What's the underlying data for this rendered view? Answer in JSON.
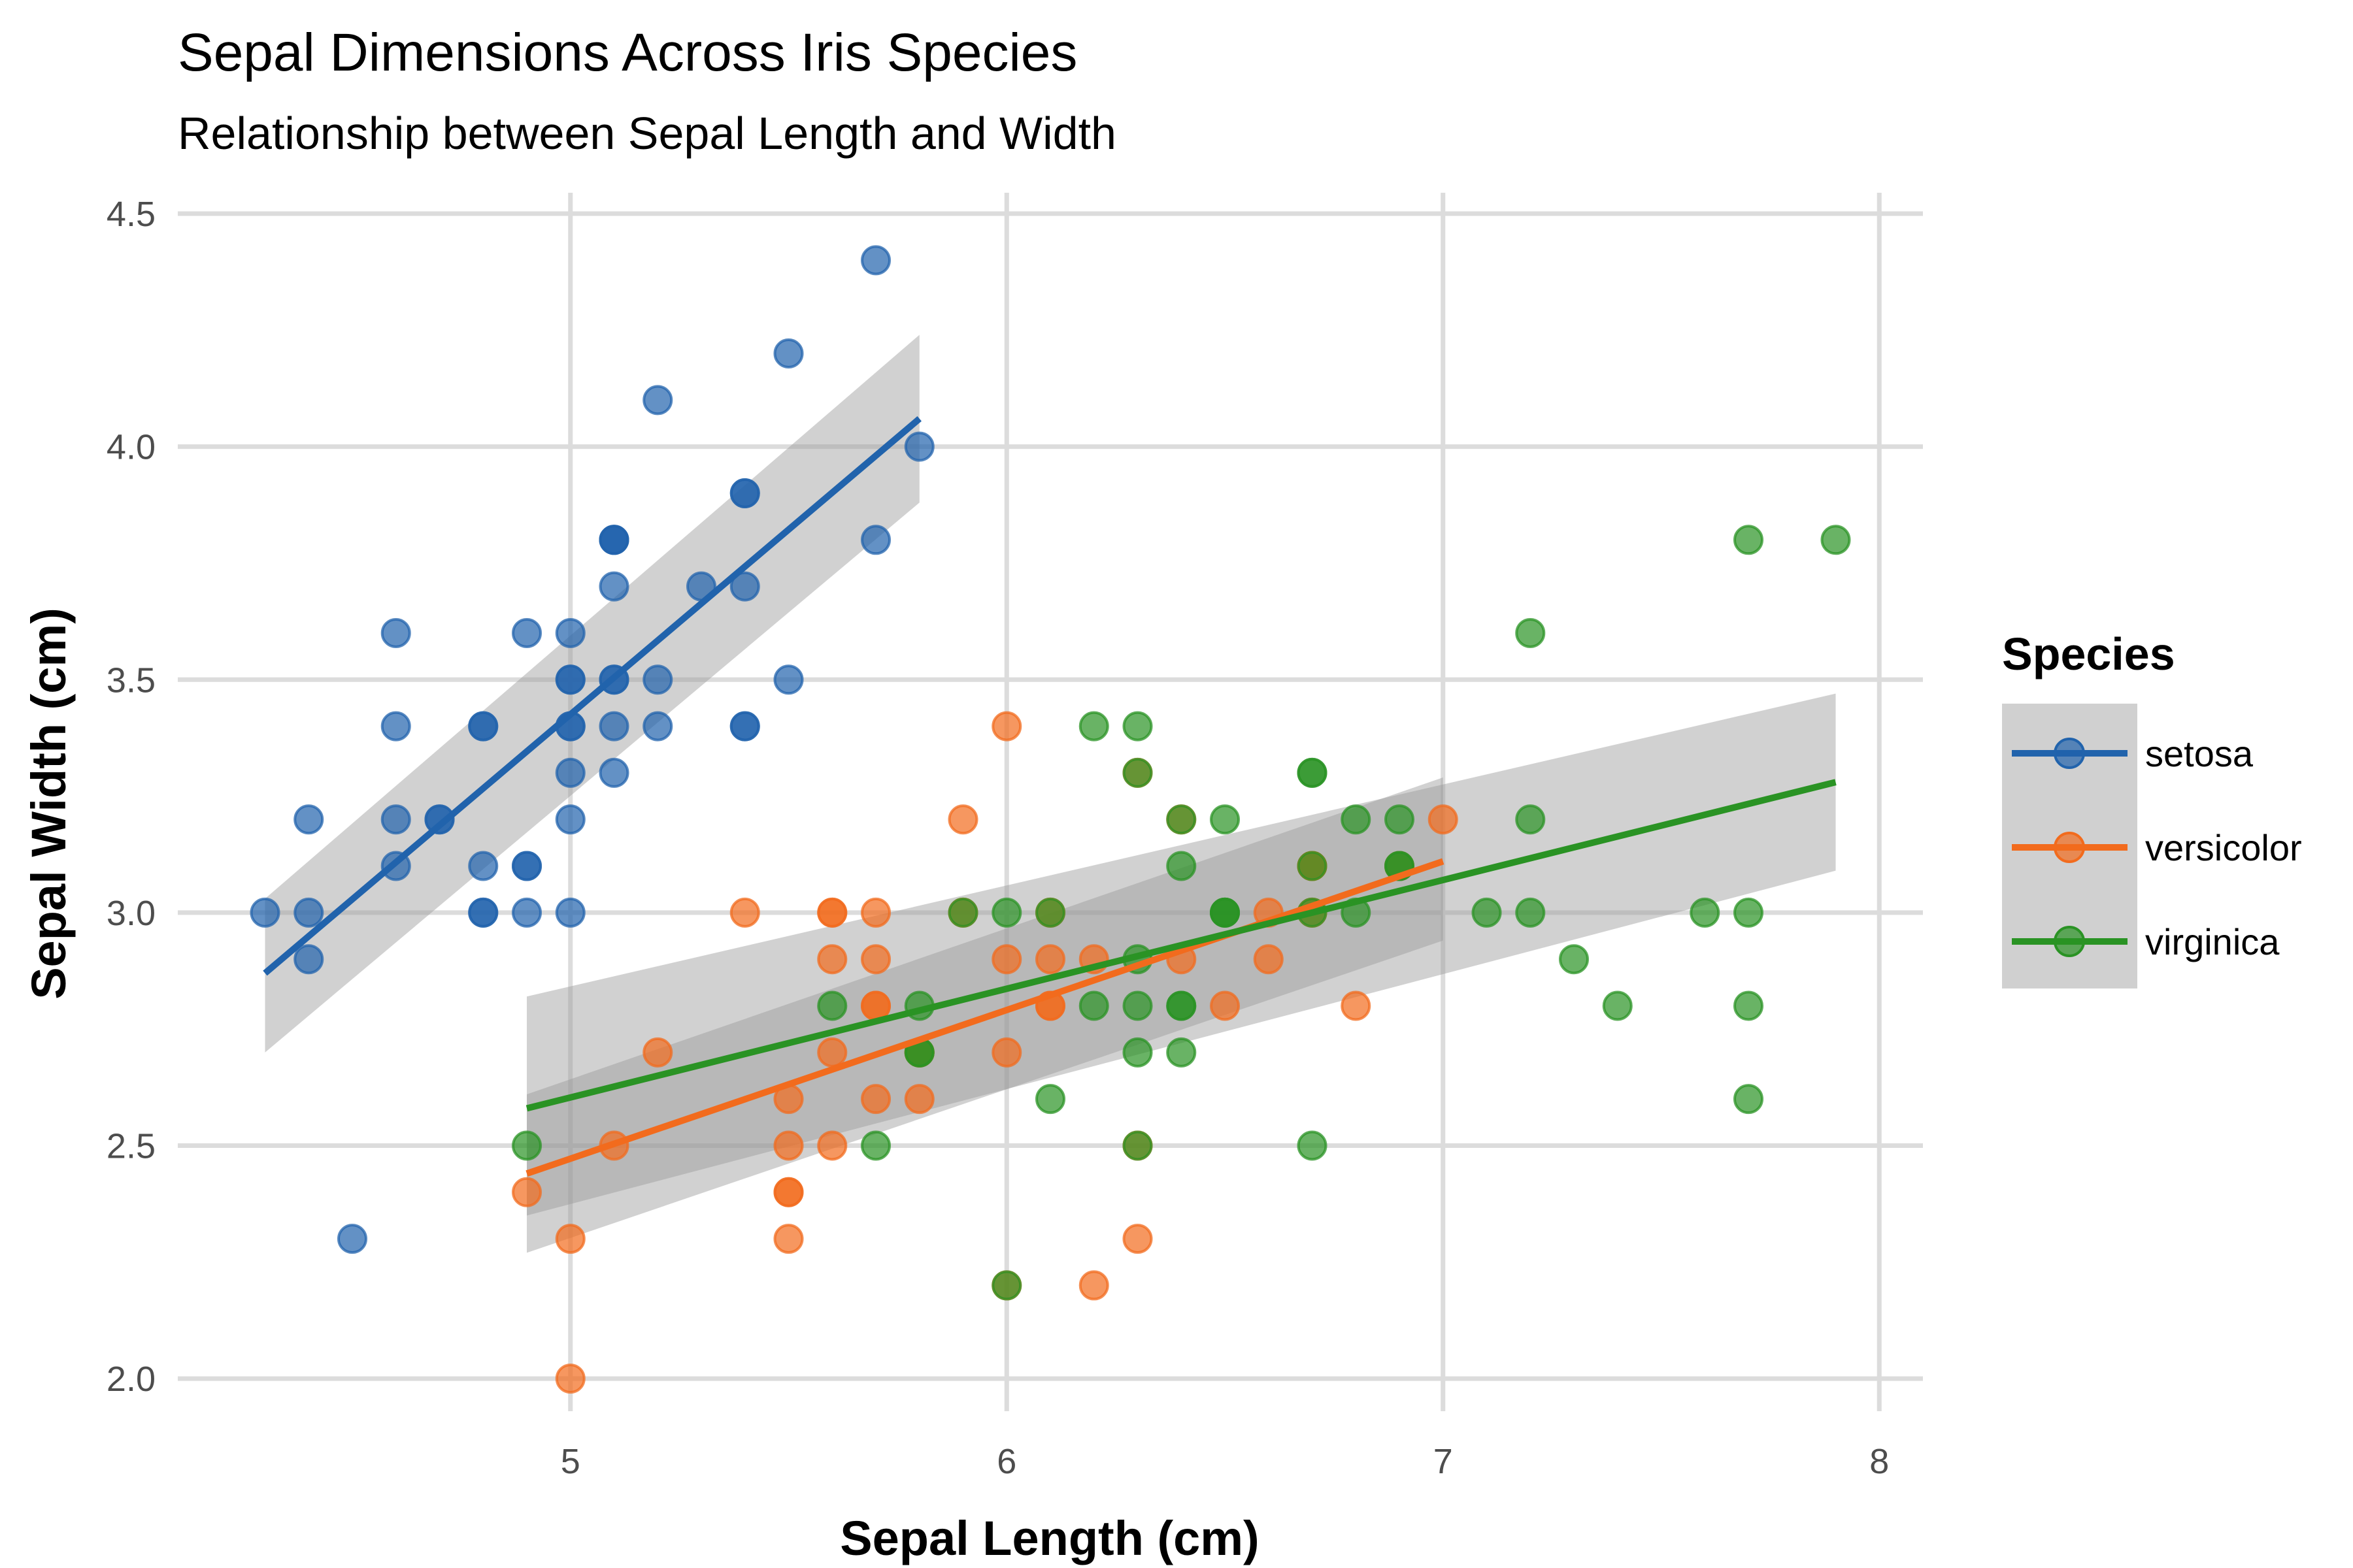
{
  "chart_data": {
    "type": "scatter",
    "title": "Sepal Dimensions Across Iris Species",
    "subtitle": "Relationship between Sepal Length and Width",
    "xlabel": "Sepal Length (cm)",
    "ylabel": "Sepal Width (cm)",
    "xlim": [
      4.1,
      8.1
    ],
    "ylim": [
      1.93,
      4.58
    ],
    "x_ticks": [
      5,
      6,
      7,
      8
    ],
    "x_tick_labels": [
      "5",
      "6",
      "7",
      "8"
    ],
    "y_ticks": [
      2.0,
      2.5,
      3.0,
      3.5,
      4.0,
      4.5
    ],
    "y_tick_labels": [
      "2.0",
      "2.5",
      "3.0",
      "3.5",
      "4.0",
      "4.5"
    ],
    "grid": true,
    "legend": {
      "title": "Species",
      "position": "right"
    },
    "series": [
      {
        "name": "setosa",
        "color": "#2163ac",
        "points": [
          [
            5.1,
            3.5
          ],
          [
            4.9,
            3.0
          ],
          [
            4.7,
            3.2
          ],
          [
            4.6,
            3.1
          ],
          [
            5.0,
            3.6
          ],
          [
            5.4,
            3.9
          ],
          [
            4.6,
            3.4
          ],
          [
            5.0,
            3.4
          ],
          [
            4.4,
            2.9
          ],
          [
            4.9,
            3.1
          ],
          [
            5.4,
            3.7
          ],
          [
            4.8,
            3.4
          ],
          [
            4.8,
            3.0
          ],
          [
            4.3,
            3.0
          ],
          [
            5.8,
            4.0
          ],
          [
            5.7,
            4.4
          ],
          [
            5.4,
            3.9
          ],
          [
            5.1,
            3.5
          ],
          [
            5.7,
            3.8
          ],
          [
            5.1,
            3.8
          ],
          [
            5.4,
            3.4
          ],
          [
            5.1,
            3.7
          ],
          [
            4.6,
            3.6
          ],
          [
            5.1,
            3.3
          ],
          [
            4.8,
            3.4
          ],
          [
            5.0,
            3.0
          ],
          [
            5.0,
            3.4
          ],
          [
            5.2,
            3.5
          ],
          [
            5.2,
            3.4
          ],
          [
            4.7,
            3.2
          ],
          [
            4.8,
            3.1
          ],
          [
            5.4,
            3.4
          ],
          [
            5.2,
            4.1
          ],
          [
            5.5,
            4.2
          ],
          [
            4.9,
            3.1
          ],
          [
            5.0,
            3.2
          ],
          [
            5.5,
            3.5
          ],
          [
            4.9,
            3.6
          ],
          [
            4.4,
            3.0
          ],
          [
            5.1,
            3.4
          ],
          [
            5.0,
            3.5
          ],
          [
            4.5,
            2.3
          ],
          [
            4.4,
            3.2
          ],
          [
            5.0,
            3.5
          ],
          [
            5.1,
            3.8
          ],
          [
            4.8,
            3.0
          ],
          [
            5.1,
            3.8
          ],
          [
            4.6,
            3.2
          ],
          [
            5.3,
            3.7
          ],
          [
            5.0,
            3.3
          ]
        ],
        "fit": {
          "x": [
            4.3,
            5.8
          ],
          "y": [
            2.87,
            4.06
          ],
          "ci_lower": [
            2.7,
            3.88
          ],
          "ci_upper": [
            3.03,
            4.24
          ]
        }
      },
      {
        "name": "versicolor",
        "color": "#f26b1d",
        "points": [
          [
            7.0,
            3.2
          ],
          [
            6.4,
            3.2
          ],
          [
            6.9,
            3.1
          ],
          [
            5.5,
            2.3
          ],
          [
            6.5,
            2.8
          ],
          [
            5.7,
            2.8
          ],
          [
            6.3,
            3.3
          ],
          [
            4.9,
            2.4
          ],
          [
            6.6,
            2.9
          ],
          [
            5.2,
            2.7
          ],
          [
            5.0,
            2.0
          ],
          [
            5.9,
            3.0
          ],
          [
            6.0,
            2.2
          ],
          [
            6.1,
            2.9
          ],
          [
            5.6,
            2.9
          ],
          [
            6.7,
            3.1
          ],
          [
            5.6,
            3.0
          ],
          [
            5.8,
            2.7
          ],
          [
            6.2,
            2.2
          ],
          [
            5.6,
            2.5
          ],
          [
            5.9,
            3.2
          ],
          [
            6.1,
            2.8
          ],
          [
            6.3,
            2.5
          ],
          [
            6.1,
            2.8
          ],
          [
            6.4,
            2.9
          ],
          [
            6.6,
            3.0
          ],
          [
            6.8,
            2.8
          ],
          [
            6.7,
            3.0
          ],
          [
            6.0,
            2.9
          ],
          [
            5.7,
            2.6
          ],
          [
            5.5,
            2.4
          ],
          [
            5.5,
            2.4
          ],
          [
            5.8,
            2.7
          ],
          [
            6.0,
            2.7
          ],
          [
            5.4,
            3.0
          ],
          [
            6.0,
            3.4
          ],
          [
            6.7,
            3.1
          ],
          [
            6.3,
            2.3
          ],
          [
            5.6,
            3.0
          ],
          [
            5.5,
            2.5
          ],
          [
            5.5,
            2.6
          ],
          [
            6.1,
            3.0
          ],
          [
            5.8,
            2.6
          ],
          [
            5.0,
            2.3
          ],
          [
            5.6,
            2.7
          ],
          [
            5.7,
            3.0
          ],
          [
            5.7,
            2.9
          ],
          [
            6.2,
            2.9
          ],
          [
            5.1,
            2.5
          ],
          [
            5.7,
            2.8
          ]
        ],
        "fit": {
          "x": [
            4.9,
            7.0
          ],
          "y": [
            2.44,
            3.11
          ],
          "ci_lower": [
            2.27,
            2.94
          ],
          "ci_upper": [
            2.61,
            3.29
          ]
        }
      },
      {
        "name": "virginica",
        "color": "#2a9324",
        "points": [
          [
            6.3,
            3.3
          ],
          [
            5.8,
            2.7
          ],
          [
            7.1,
            3.0
          ],
          [
            6.3,
            2.9
          ],
          [
            6.5,
            3.0
          ],
          [
            7.6,
            3.0
          ],
          [
            4.9,
            2.5
          ],
          [
            7.3,
            2.9
          ],
          [
            6.7,
            2.5
          ],
          [
            7.2,
            3.6
          ],
          [
            6.5,
            3.2
          ],
          [
            6.4,
            2.7
          ],
          [
            6.8,
            3.0
          ],
          [
            5.7,
            2.5
          ],
          [
            5.8,
            2.8
          ],
          [
            6.4,
            3.2
          ],
          [
            6.5,
            3.0
          ],
          [
            7.7,
            3.8
          ],
          [
            7.7,
            2.6
          ],
          [
            6.0,
            2.2
          ],
          [
            6.9,
            3.2
          ],
          [
            5.6,
            2.8
          ],
          [
            7.7,
            2.8
          ],
          [
            6.3,
            2.7
          ],
          [
            6.7,
            3.3
          ],
          [
            7.2,
            3.2
          ],
          [
            6.2,
            2.8
          ],
          [
            6.1,
            3.0
          ],
          [
            6.4,
            2.8
          ],
          [
            7.2,
            3.0
          ],
          [
            7.4,
            2.8
          ],
          [
            7.9,
            3.8
          ],
          [
            6.4,
            2.8
          ],
          [
            6.3,
            2.8
          ],
          [
            6.1,
            2.6
          ],
          [
            7.7,
            3.0
          ],
          [
            6.3,
            3.4
          ],
          [
            6.4,
            3.1
          ],
          [
            6.0,
            3.0
          ],
          [
            6.9,
            3.1
          ],
          [
            6.7,
            3.1
          ],
          [
            6.9,
            3.1
          ],
          [
            5.8,
            2.7
          ],
          [
            6.8,
            3.2
          ],
          [
            6.7,
            3.3
          ],
          [
            6.7,
            3.0
          ],
          [
            6.3,
            2.5
          ],
          [
            6.5,
            3.0
          ],
          [
            6.2,
            3.4
          ],
          [
            5.9,
            3.0
          ]
        ],
        "fit": {
          "x": [
            4.9,
            7.9
          ],
          "y": [
            2.58,
            3.28
          ],
          "ci_lower": [
            2.35,
            3.09
          ],
          "ci_upper": [
            2.82,
            3.47
          ]
        }
      }
    ]
  }
}
